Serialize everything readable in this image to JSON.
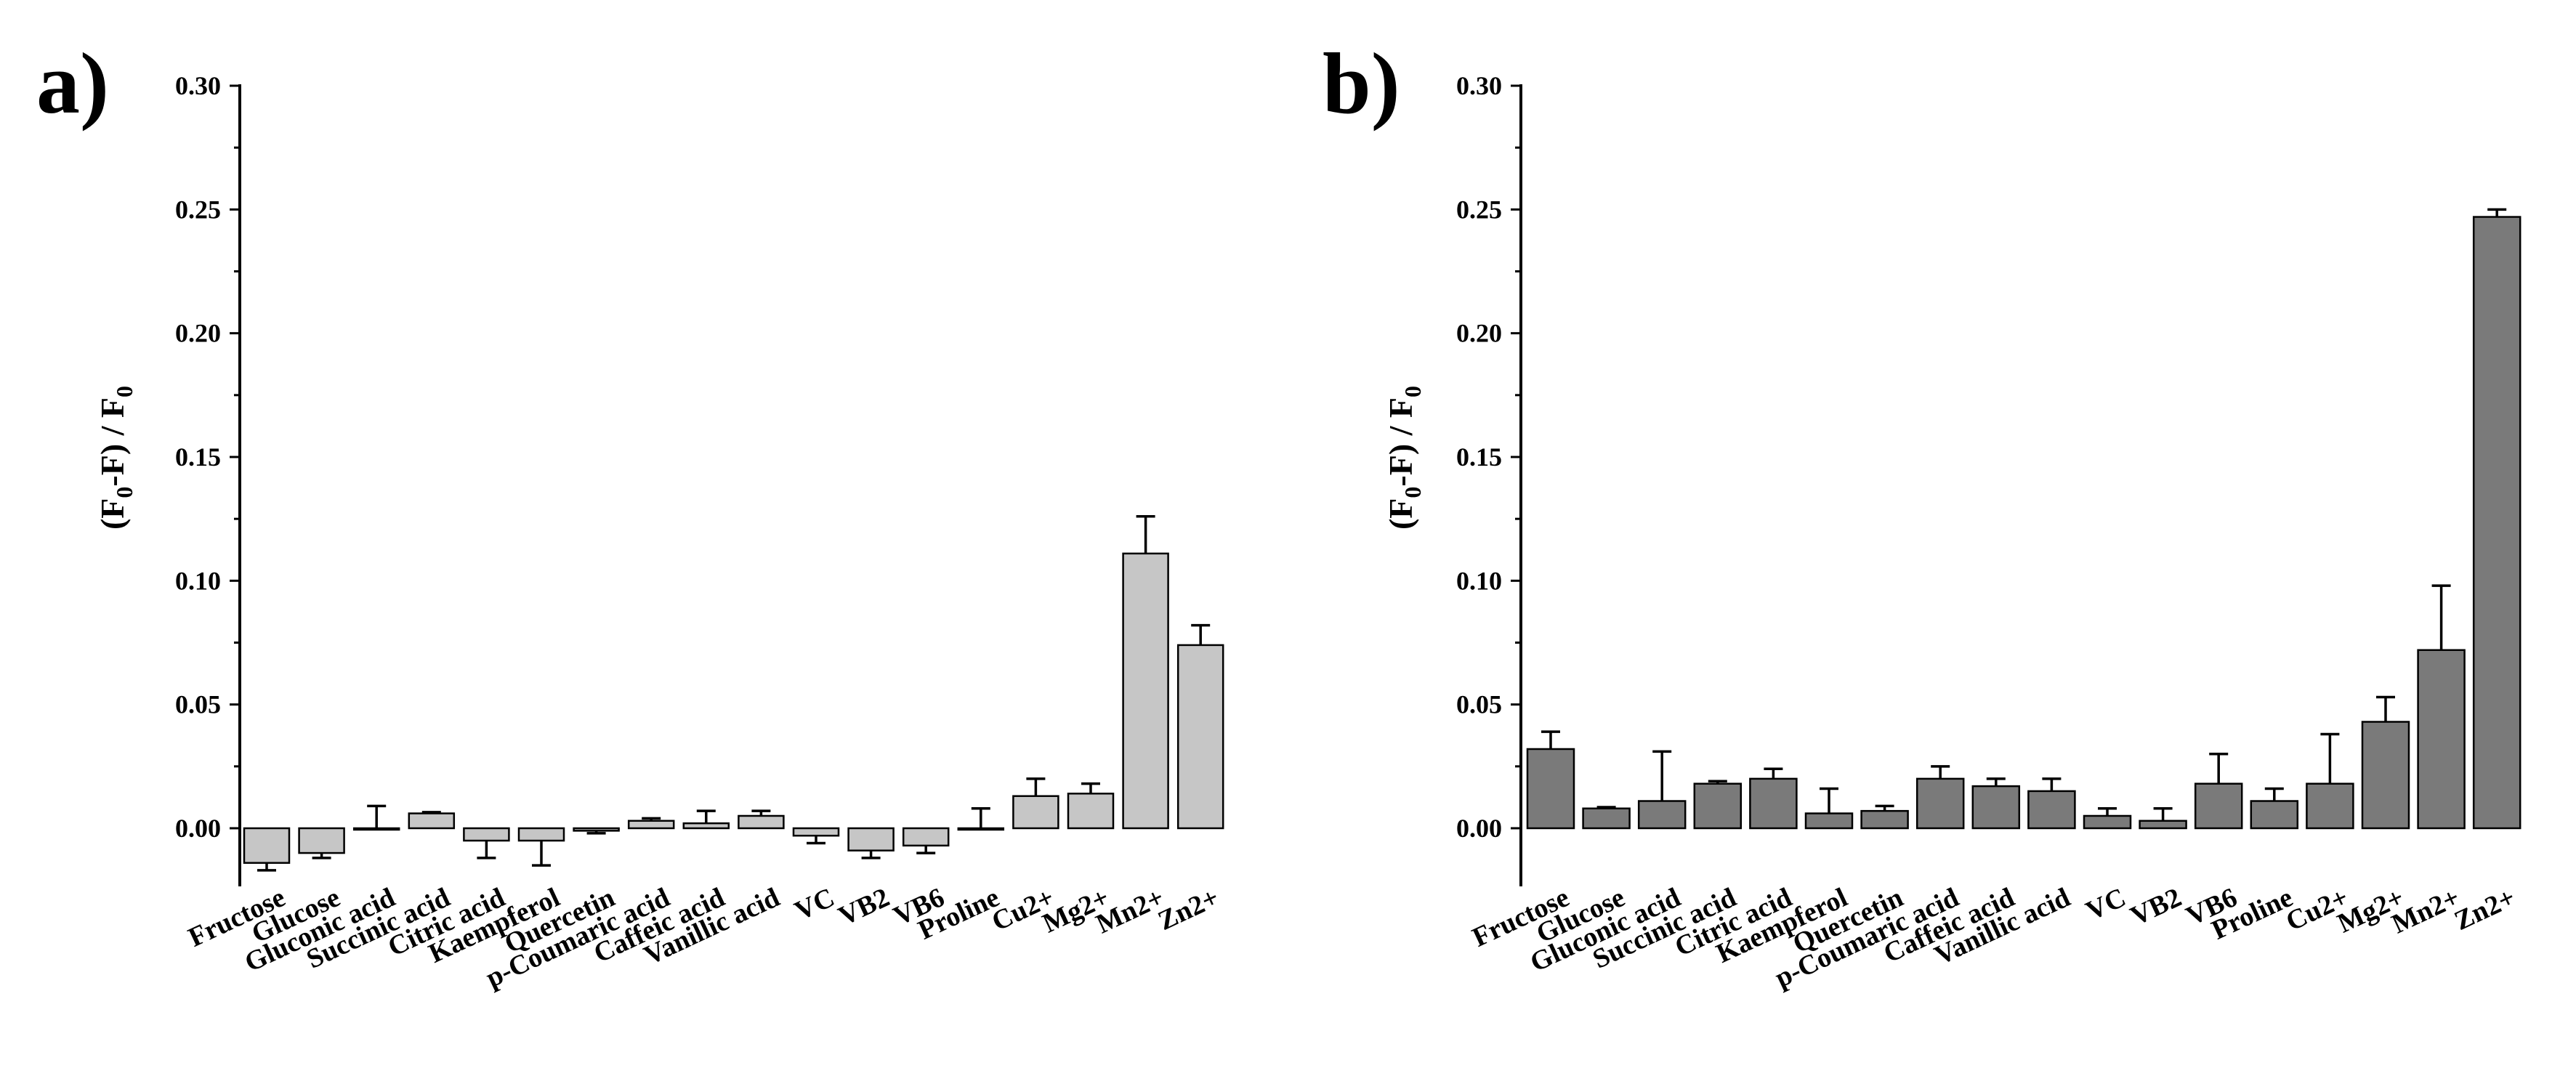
{
  "chart_data": [
    {
      "type": "bar",
      "panel_label": "a)",
      "ylabel": "(F0-F) / F0",
      "ylabel_parts": {
        "open": "(F",
        "sub1": "0",
        "mid": "-F) / F",
        "sub2": "0"
      },
      "ylim": [
        -0.02,
        0.3
      ],
      "yticks": [
        0.0,
        0.05,
        0.1,
        0.15,
        0.2,
        0.25,
        0.3
      ],
      "ytick_labels": [
        "0.00",
        "0.05",
        "0.10",
        "0.15",
        "0.20",
        "0.25",
        "0.30"
      ],
      "bar_color": "#c6c6c6",
      "categories": [
        "Fructose",
        "Glucose",
        "Gluconic acid",
        "Succinic acid",
        "Citric acid",
        "Kaempferol",
        "Quercetin",
        "p-Coumaric acid",
        "Caffeic acid",
        "Vanillic acid",
        "VC",
        "VB2",
        "VB6",
        "Proline",
        "Cu2+",
        "Mg2+",
        "Mn2+",
        "Zn2+"
      ],
      "values": [
        -0.014,
        -0.01,
        0.0,
        0.006,
        -0.005,
        -0.005,
        -0.001,
        0.003,
        0.002,
        0.005,
        -0.003,
        -0.009,
        -0.007,
        0.0,
        0.013,
        0.014,
        0.111,
        0.074
      ],
      "errors": [
        0.003,
        0.002,
        0.009,
        0.0005,
        0.007,
        0.01,
        0.001,
        0.001,
        0.005,
        0.002,
        0.003,
        0.003,
        0.003,
        0.008,
        0.007,
        0.004,
        0.015,
        0.008
      ]
    },
    {
      "type": "bar",
      "panel_label": "b)",
      "ylabel": "(F0-F) / F0",
      "ylabel_parts": {
        "open": "(F",
        "sub1": "0",
        "mid": "-F) / F",
        "sub2": "0"
      },
      "ylim": [
        -0.02,
        0.3
      ],
      "yticks": [
        0.0,
        0.05,
        0.1,
        0.15,
        0.2,
        0.25,
        0.3
      ],
      "ytick_labels": [
        "0.00",
        "0.05",
        "0.10",
        "0.15",
        "0.20",
        "0.25",
        "0.30"
      ],
      "bar_color": "#7a7a7a",
      "categories": [
        "Fructose",
        "Glucose",
        "Gluconic acid",
        "Succinic acid",
        "Citric acid",
        "Kaempferol",
        "Quercetin",
        "p-Coumaric acid",
        "Caffeic acid",
        "Vanillic acid",
        "VC",
        "VB2",
        "VB6",
        "Proline",
        "Cu2+",
        "Mg2+",
        "Mn2+",
        "Zn2+"
      ],
      "values": [
        0.032,
        0.008,
        0.011,
        0.018,
        0.02,
        0.006,
        0.007,
        0.02,
        0.017,
        0.015,
        0.005,
        0.003,
        0.018,
        0.011,
        0.018,
        0.043,
        0.072,
        0.247
      ],
      "errors": [
        0.007,
        0.0005,
        0.02,
        0.001,
        0.004,
        0.01,
        0.002,
        0.005,
        0.003,
        0.005,
        0.003,
        0.005,
        0.012,
        0.005,
        0.02,
        0.01,
        0.026,
        0.003
      ]
    }
  ]
}
